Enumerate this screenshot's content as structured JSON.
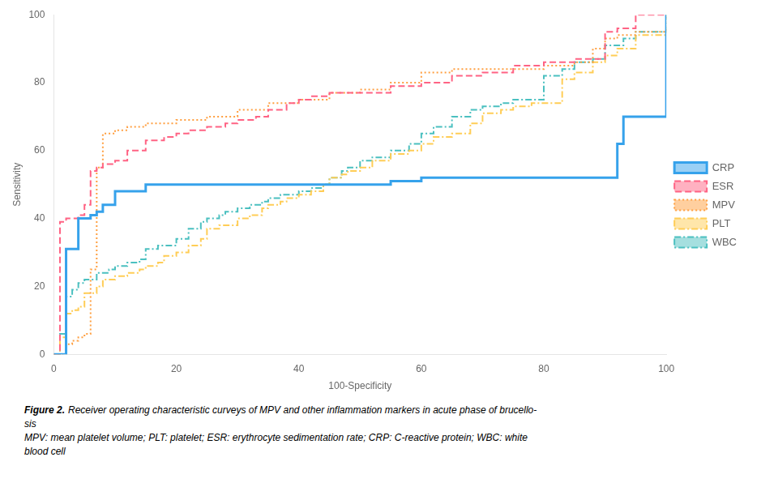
{
  "chart_data": {
    "type": "line",
    "xlabel": "100-Specificity",
    "ylabel": "Sensitivity",
    "xlim": [
      0,
      100
    ],
    "ylim": [
      0,
      100
    ],
    "xticks": [
      0,
      20,
      40,
      60,
      80,
      100
    ],
    "yticks": [
      0,
      20,
      40,
      60,
      80,
      100
    ],
    "grid": false,
    "legend": "right",
    "series": [
      {
        "name": "CRP",
        "line_style": "solid",
        "x": [
          0,
          2,
          2,
          4,
          5,
          6,
          7,
          8,
          10,
          15,
          20,
          25,
          30,
          35,
          40,
          45,
          50,
          55,
          60,
          62,
          65,
          70,
          75,
          80,
          85,
          90,
          92,
          93,
          95,
          100
        ],
        "values": [
          0,
          0,
          31,
          40,
          40,
          41,
          42,
          44,
          48,
          50,
          50,
          50,
          50,
          50,
          50,
          50,
          50,
          51,
          52,
          52,
          52,
          52,
          52,
          52,
          52,
          52,
          62,
          70,
          70,
          100
        ]
      },
      {
        "name": "ESR",
        "line_style": "dashed",
        "x": [
          0,
          1,
          2,
          3,
          4,
          5,
          6,
          7,
          8,
          10,
          12,
          15,
          18,
          20,
          22,
          25,
          28,
          30,
          33,
          35,
          38,
          40,
          42,
          45,
          48,
          50,
          55,
          60,
          65,
          70,
          75,
          80,
          85,
          90,
          92,
          95,
          100
        ],
        "values": [
          0,
          39,
          40,
          40,
          41,
          44,
          54,
          55,
          56,
          57,
          60,
          63,
          64,
          65,
          66,
          67,
          68,
          69,
          70,
          72,
          74,
          75,
          76,
          77,
          77,
          77,
          79,
          80,
          82,
          83,
          85,
          86,
          87,
          95,
          96,
          100,
          100
        ]
      },
      {
        "name": "MPV",
        "line_style": "dotted",
        "x": [
          0,
          1,
          2,
          3,
          4,
          5,
          6,
          7,
          8,
          10,
          12,
          15,
          20,
          25,
          30,
          35,
          40,
          45,
          50,
          55,
          60,
          65,
          70,
          75,
          80,
          85,
          88,
          90,
          92,
          95,
          100
        ],
        "values": [
          0,
          0,
          3,
          4,
          5,
          6,
          25,
          55,
          65,
          66,
          67,
          68,
          69,
          70,
          72,
          74,
          75,
          77,
          78,
          80,
          83,
          84,
          84,
          84,
          85,
          86,
          90,
          93,
          94,
          95,
          100
        ]
      },
      {
        "name": "PLT",
        "line_style": "dashdot",
        "x": [
          0,
          1,
          2,
          3,
          4,
          5,
          7,
          8,
          10,
          12,
          14,
          15,
          17,
          18,
          20,
          22,
          24,
          25,
          27,
          28,
          30,
          32,
          34,
          35,
          37,
          38,
          40,
          42,
          44,
          45,
          47,
          48,
          50,
          52,
          55,
          58,
          60,
          62,
          65,
          68,
          70,
          73,
          75,
          78,
          80,
          83,
          85,
          88,
          90,
          92,
          95,
          100
        ],
        "values": [
          0,
          5,
          12,
          13,
          14,
          18,
          20,
          22,
          23,
          24,
          25,
          26,
          27,
          29,
          30,
          32,
          34,
          37,
          38,
          38,
          40,
          41,
          43,
          44,
          45,
          46,
          47,
          48,
          50,
          52,
          53,
          54,
          55,
          57,
          59,
          60,
          62,
          64,
          65,
          68,
          71,
          72,
          73,
          74,
          74,
          81,
          83,
          86,
          88,
          90,
          94,
          100
        ]
      },
      {
        "name": "WBC",
        "line_style": "dashdot",
        "x": [
          0,
          1,
          2,
          3,
          4,
          5,
          7,
          9,
          10,
          12,
          14,
          15,
          17,
          18,
          20,
          22,
          24,
          25,
          27,
          28,
          30,
          32,
          34,
          35,
          37,
          38,
          40,
          42,
          44,
          45,
          47,
          48,
          50,
          52,
          55,
          58,
          60,
          62,
          65,
          68,
          70,
          73,
          75,
          78,
          80,
          83,
          85,
          88,
          90,
          93,
          95,
          100
        ],
        "values": [
          0,
          6,
          17,
          19,
          21,
          22,
          24,
          25,
          26,
          27,
          28,
          31,
          32,
          32,
          34,
          37,
          39,
          40,
          41,
          42,
          43,
          44,
          45,
          46,
          47,
          47,
          48,
          49,
          50,
          52,
          54,
          55,
          57,
          58,
          60,
          62,
          65,
          67,
          70,
          72,
          73,
          74,
          75,
          75,
          82,
          84,
          86,
          87,
          91,
          93,
          95,
          100
        ]
      }
    ],
    "caption_label": "Figure 2.",
    "caption": [
      "Receiver operating characteristic curveys of MPV and other inflammation markers in acute phase of brucello-",
      "sis",
      "MPV: mean platelet volume; PLT: platelet; ESR: erythrocyte sedimentation rate; CRP: C-reactive protein; WBC: white",
      "blood cell"
    ]
  }
}
